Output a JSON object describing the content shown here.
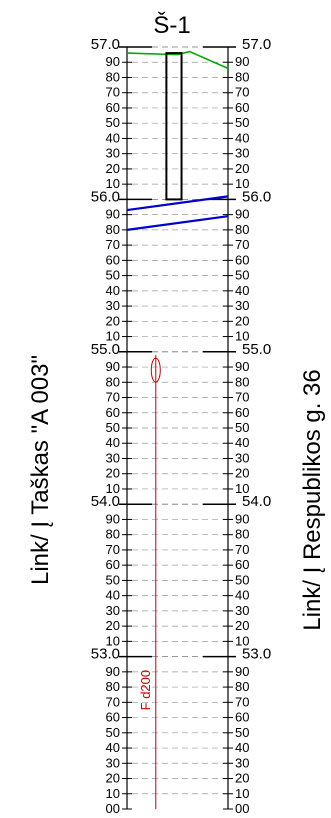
{
  "title": "Š-1",
  "left_side_label": "Link/ Į Taškas \"A 003\"",
  "right_side_label": "Link/ Į Respublikos g. 36",
  "pipe_label": "F d200",
  "elevation_scale": {
    "top": 57.0,
    "bottom": 52.0,
    "major_labels": [
      "57.0",
      "56.0",
      "55.0",
      "54.0",
      "53.0"
    ],
    "minor_labels": [
      "90",
      "80",
      "70",
      "60",
      "50",
      "40",
      "30",
      "20",
      "10"
    ],
    "bottom_label": "00"
  },
  "ground_line": {
    "color": "#00aa00",
    "points": [
      {
        "offset": 0.0,
        "elevation": 56.96
      },
      {
        "offset": 0.5,
        "elevation": 56.95
      },
      {
        "offset": 0.62,
        "elevation": 56.97
      },
      {
        "offset": 1.0,
        "elevation": 56.86
      }
    ]
  },
  "manhole": {
    "top_elevation": 56.96,
    "bottom_elevation": 56.0,
    "color": "#000000"
  },
  "pipe_lines": {
    "color": "#0000cc",
    "lines": [
      {
        "left_elevation": 55.93,
        "right_elevation": 56.02
      },
      {
        "left_elevation": 55.8,
        "right_elevation": 55.89
      }
    ]
  },
  "pipe_profile": {
    "color": "#cc0000",
    "ellipse_center_elevation": 54.88,
    "line_top_elevation": 54.98,
    "line_bottom_elevation": 52.0
  }
}
